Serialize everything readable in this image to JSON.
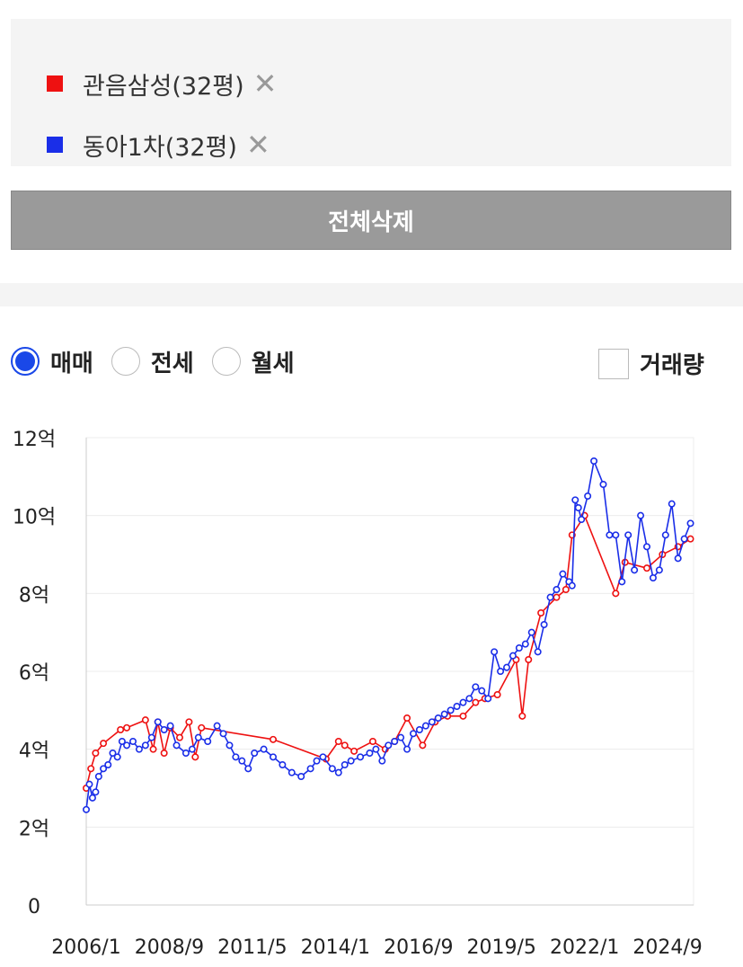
{
  "filters": [
    {
      "label": "관음삼성(32평)",
      "color": "#ee1111",
      "remove": "✕"
    },
    {
      "label": "동아1차(32평)",
      "color": "#1a2ee8",
      "remove": "✕"
    }
  ],
  "delete_all_label": "전체삭제",
  "trade_types": [
    {
      "label": "매매",
      "selected": true
    },
    {
      "label": "전세",
      "selected": false
    },
    {
      "label": "월세",
      "selected": false
    }
  ],
  "volume_toggle": {
    "label": "거래량",
    "checked": false
  },
  "chart_data": {
    "type": "line",
    "title": "",
    "ylim": [
      0,
      12
    ],
    "y_ticks": [
      0,
      2,
      4,
      6,
      8,
      10,
      12
    ],
    "y_tick_labels": [
      "0",
      "2억",
      "4억",
      "6억",
      "8억",
      "10억",
      "12억"
    ],
    "x_ticks": [
      2006.0,
      2008.667,
      2011.333,
      2014.0,
      2016.667,
      2019.333,
      2022.0,
      2024.667
    ],
    "x_tick_labels": [
      "2006/1",
      "2008/9",
      "2011/5",
      "2014/1",
      "2016/9",
      "2019/5",
      "2022/1",
      "2024/9"
    ],
    "xlim": [
      2006.0,
      2025.5
    ],
    "grid": true,
    "series": [
      {
        "name": "관음삼성(32평)",
        "color": "#ee1111",
        "x": [
          2006.0,
          2006.15,
          2006.3,
          2006.55,
          2007.1,
          2007.3,
          2007.9,
          2008.15,
          2008.3,
          2008.5,
          2008.7,
          2009.0,
          2009.3,
          2009.5,
          2009.7,
          2012.0,
          2013.7,
          2014.1,
          2014.3,
          2014.6,
          2015.2,
          2015.6,
          2015.9,
          2016.3,
          2016.8,
          2017.2,
          2017.6,
          2018.1,
          2018.5,
          2018.8,
          2019.2,
          2019.8,
          2020.0,
          2020.2,
          2020.6,
          2021.1,
          2021.4,
          2021.6,
          2022.0,
          2023.0,
          2023.3,
          2024.0,
          2024.5,
          2025.0,
          2025.4
        ],
        "values": [
          3.0,
          3.5,
          3.9,
          4.15,
          4.5,
          4.55,
          4.75,
          4.0,
          4.7,
          3.9,
          4.55,
          4.3,
          4.7,
          3.8,
          4.55,
          4.25,
          3.75,
          4.2,
          4.1,
          3.95,
          4.2,
          4.0,
          4.2,
          4.8,
          4.1,
          4.7,
          4.85,
          4.85,
          5.2,
          5.3,
          5.4,
          6.3,
          4.85,
          6.3,
          7.5,
          7.9,
          8.1,
          9.5,
          10.0,
          8.0,
          8.8,
          8.65,
          9.0,
          9.2,
          9.4
        ]
      },
      {
        "name": "동아1차(32평)",
        "color": "#1a2ee8",
        "x": [
          2006.0,
          2006.1,
          2006.2,
          2006.3,
          2006.4,
          2006.55,
          2006.7,
          2006.85,
          2007.0,
          2007.15,
          2007.3,
          2007.5,
          2007.7,
          2007.9,
          2008.1,
          2008.3,
          2008.5,
          2008.7,
          2008.9,
          2009.2,
          2009.4,
          2009.6,
          2009.9,
          2010.2,
          2010.4,
          2010.6,
          2010.8,
          2011.0,
          2011.2,
          2011.4,
          2011.7,
          2012.0,
          2012.3,
          2012.6,
          2012.9,
          2013.2,
          2013.4,
          2013.6,
          2013.9,
          2014.1,
          2014.3,
          2014.5,
          2014.8,
          2015.1,
          2015.3,
          2015.5,
          2015.7,
          2015.9,
          2016.1,
          2016.3,
          2016.5,
          2016.7,
          2016.9,
          2017.1,
          2017.3,
          2017.5,
          2017.7,
          2017.9,
          2018.1,
          2018.3,
          2018.5,
          2018.7,
          2018.9,
          2019.1,
          2019.3,
          2019.5,
          2019.7,
          2019.9,
          2020.1,
          2020.3,
          2020.5,
          2020.7,
          2020.9,
          2021.1,
          2021.3,
          2021.5,
          2021.6,
          2021.7,
          2021.8,
          2021.9,
          2022.1,
          2022.3,
          2022.6,
          2022.8,
          2023.0,
          2023.2,
          2023.4,
          2023.6,
          2023.8,
          2024.0,
          2024.2,
          2024.4,
          2024.6,
          2024.8,
          2025.0,
          2025.2,
          2025.4
        ],
        "values": [
          2.45,
          3.1,
          2.75,
          2.9,
          3.3,
          3.5,
          3.6,
          3.9,
          3.8,
          4.2,
          4.1,
          4.2,
          4.0,
          4.1,
          4.3,
          4.7,
          4.5,
          4.6,
          4.1,
          3.9,
          4.0,
          4.3,
          4.2,
          4.6,
          4.4,
          4.1,
          3.8,
          3.7,
          3.5,
          3.9,
          4.0,
          3.8,
          3.6,
          3.4,
          3.3,
          3.5,
          3.7,
          3.8,
          3.5,
          3.4,
          3.6,
          3.7,
          3.8,
          3.9,
          4.0,
          3.7,
          4.1,
          4.2,
          4.3,
          4.0,
          4.4,
          4.5,
          4.6,
          4.7,
          4.8,
          4.9,
          5.0,
          5.1,
          5.2,
          5.3,
          5.6,
          5.5,
          5.3,
          6.5,
          6.0,
          6.1,
          6.4,
          6.6,
          6.7,
          7.0,
          6.5,
          7.2,
          7.9,
          8.1,
          8.5,
          8.3,
          8.2,
          10.4,
          10.2,
          9.9,
          10.5,
          11.4,
          10.8,
          9.5,
          9.5,
          8.3,
          9.5,
          8.6,
          10.0,
          9.2,
          8.4,
          8.6,
          9.5,
          10.3,
          8.9,
          9.4,
          9.8
        ]
      }
    ]
  }
}
